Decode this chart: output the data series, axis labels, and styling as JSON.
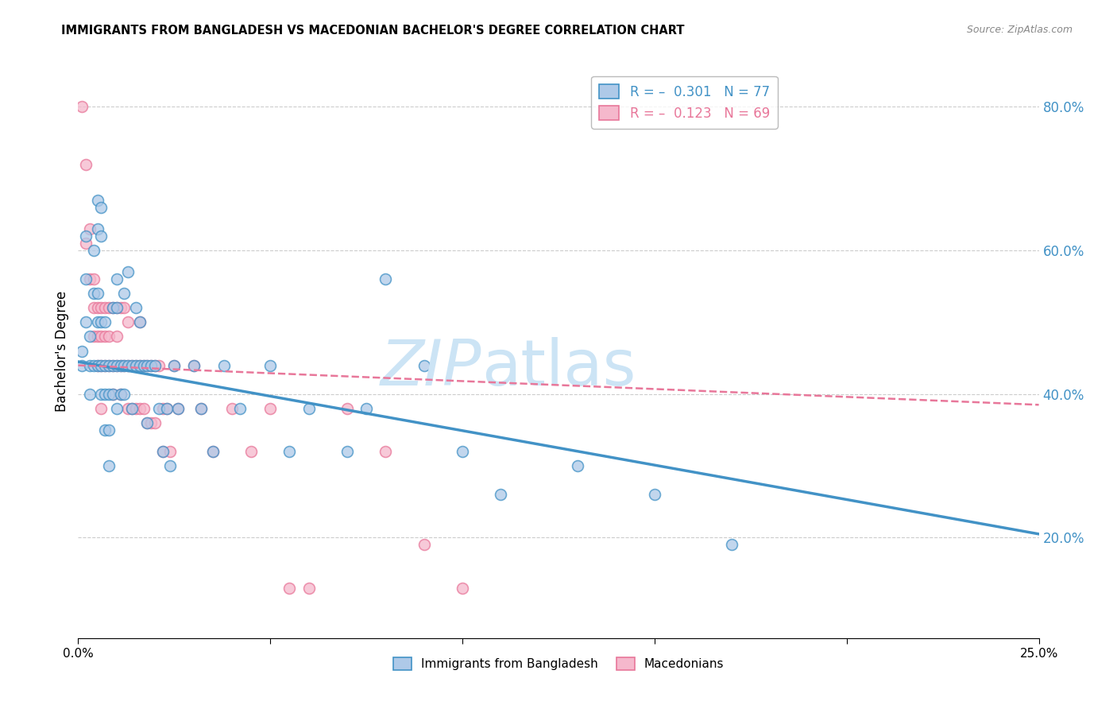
{
  "title": "IMMIGRANTS FROM BANGLADESH VS MACEDONIAN BACHELOR'S DEGREE CORRELATION CHART",
  "source_text": "Source: ZipAtlas.com",
  "ylabel": "Bachelor's Degree",
  "legend_entries": [
    {
      "label_prefix": "R = ",
      "r_val": "-0.301",
      "label_suffix": "   N = ",
      "n_val": "77"
    },
    {
      "label_prefix": "R = ",
      "r_val": "-0.123",
      "label_suffix": "   N = ",
      "n_val": "69"
    }
  ],
  "legend_labels_bottom": [
    "Immigrants from Bangladesh",
    "Macedonians"
  ],
  "x_min": 0.0,
  "x_max": 0.25,
  "y_min": 0.06,
  "y_max": 0.86,
  "y_ticks_right": [
    0.2,
    0.4,
    0.6,
    0.8
  ],
  "blue_scatter": [
    [
      0.001,
      0.44
    ],
    [
      0.001,
      0.46
    ],
    [
      0.002,
      0.5
    ],
    [
      0.002,
      0.56
    ],
    [
      0.002,
      0.62
    ],
    [
      0.003,
      0.48
    ],
    [
      0.003,
      0.44
    ],
    [
      0.003,
      0.4
    ],
    [
      0.004,
      0.6
    ],
    [
      0.004,
      0.54
    ],
    [
      0.004,
      0.44
    ],
    [
      0.005,
      0.67
    ],
    [
      0.005,
      0.63
    ],
    [
      0.005,
      0.54
    ],
    [
      0.005,
      0.5
    ],
    [
      0.005,
      0.44
    ],
    [
      0.006,
      0.66
    ],
    [
      0.006,
      0.62
    ],
    [
      0.006,
      0.5
    ],
    [
      0.006,
      0.44
    ],
    [
      0.006,
      0.4
    ],
    [
      0.007,
      0.5
    ],
    [
      0.007,
      0.44
    ],
    [
      0.007,
      0.4
    ],
    [
      0.007,
      0.35
    ],
    [
      0.008,
      0.44
    ],
    [
      0.008,
      0.4
    ],
    [
      0.008,
      0.35
    ],
    [
      0.008,
      0.3
    ],
    [
      0.009,
      0.52
    ],
    [
      0.009,
      0.44
    ],
    [
      0.009,
      0.4
    ],
    [
      0.01,
      0.56
    ],
    [
      0.01,
      0.52
    ],
    [
      0.01,
      0.44
    ],
    [
      0.01,
      0.38
    ],
    [
      0.011,
      0.44
    ],
    [
      0.011,
      0.4
    ],
    [
      0.012,
      0.54
    ],
    [
      0.012,
      0.44
    ],
    [
      0.012,
      0.4
    ],
    [
      0.013,
      0.57
    ],
    [
      0.013,
      0.44
    ],
    [
      0.014,
      0.44
    ],
    [
      0.014,
      0.38
    ],
    [
      0.015,
      0.52
    ],
    [
      0.015,
      0.44
    ],
    [
      0.016,
      0.5
    ],
    [
      0.016,
      0.44
    ],
    [
      0.017,
      0.44
    ],
    [
      0.018,
      0.44
    ],
    [
      0.018,
      0.36
    ],
    [
      0.019,
      0.44
    ],
    [
      0.02,
      0.44
    ],
    [
      0.021,
      0.38
    ],
    [
      0.022,
      0.32
    ],
    [
      0.023,
      0.38
    ],
    [
      0.024,
      0.3
    ],
    [
      0.025,
      0.44
    ],
    [
      0.026,
      0.38
    ],
    [
      0.03,
      0.44
    ],
    [
      0.032,
      0.38
    ],
    [
      0.035,
      0.32
    ],
    [
      0.038,
      0.44
    ],
    [
      0.042,
      0.38
    ],
    [
      0.05,
      0.44
    ],
    [
      0.055,
      0.32
    ],
    [
      0.06,
      0.38
    ],
    [
      0.07,
      0.32
    ],
    [
      0.075,
      0.38
    ],
    [
      0.08,
      0.56
    ],
    [
      0.09,
      0.44
    ],
    [
      0.1,
      0.32
    ],
    [
      0.11,
      0.26
    ],
    [
      0.13,
      0.3
    ],
    [
      0.15,
      0.26
    ],
    [
      0.17,
      0.19
    ]
  ],
  "pink_scatter": [
    [
      0.001,
      0.8
    ],
    [
      0.002,
      0.72
    ],
    [
      0.002,
      0.61
    ],
    [
      0.003,
      0.63
    ],
    [
      0.003,
      0.56
    ],
    [
      0.004,
      0.56
    ],
    [
      0.004,
      0.52
    ],
    [
      0.004,
      0.48
    ],
    [
      0.005,
      0.52
    ],
    [
      0.005,
      0.48
    ],
    [
      0.005,
      0.44
    ],
    [
      0.006,
      0.52
    ],
    [
      0.006,
      0.48
    ],
    [
      0.006,
      0.44
    ],
    [
      0.006,
      0.38
    ],
    [
      0.007,
      0.52
    ],
    [
      0.007,
      0.48
    ],
    [
      0.007,
      0.44
    ],
    [
      0.008,
      0.52
    ],
    [
      0.008,
      0.48
    ],
    [
      0.008,
      0.44
    ],
    [
      0.009,
      0.52
    ],
    [
      0.009,
      0.44
    ],
    [
      0.009,
      0.4
    ],
    [
      0.01,
      0.52
    ],
    [
      0.01,
      0.48
    ],
    [
      0.01,
      0.44
    ],
    [
      0.011,
      0.52
    ],
    [
      0.011,
      0.44
    ],
    [
      0.011,
      0.4
    ],
    [
      0.012,
      0.52
    ],
    [
      0.012,
      0.44
    ],
    [
      0.013,
      0.5
    ],
    [
      0.013,
      0.44
    ],
    [
      0.013,
      0.38
    ],
    [
      0.014,
      0.44
    ],
    [
      0.014,
      0.38
    ],
    [
      0.015,
      0.44
    ],
    [
      0.015,
      0.38
    ],
    [
      0.016,
      0.5
    ],
    [
      0.016,
      0.44
    ],
    [
      0.016,
      0.38
    ],
    [
      0.017,
      0.44
    ],
    [
      0.017,
      0.38
    ],
    [
      0.018,
      0.44
    ],
    [
      0.018,
      0.36
    ],
    [
      0.019,
      0.44
    ],
    [
      0.019,
      0.36
    ],
    [
      0.02,
      0.44
    ],
    [
      0.02,
      0.36
    ],
    [
      0.021,
      0.44
    ],
    [
      0.022,
      0.38
    ],
    [
      0.022,
      0.32
    ],
    [
      0.023,
      0.38
    ],
    [
      0.024,
      0.32
    ],
    [
      0.025,
      0.44
    ],
    [
      0.026,
      0.38
    ],
    [
      0.03,
      0.44
    ],
    [
      0.032,
      0.38
    ],
    [
      0.035,
      0.32
    ],
    [
      0.04,
      0.38
    ],
    [
      0.045,
      0.32
    ],
    [
      0.05,
      0.38
    ],
    [
      0.055,
      0.13
    ],
    [
      0.06,
      0.13
    ],
    [
      0.07,
      0.38
    ],
    [
      0.08,
      0.32
    ],
    [
      0.09,
      0.19
    ],
    [
      0.1,
      0.13
    ]
  ],
  "blue_line_x": [
    0.0,
    0.25
  ],
  "blue_line_y": [
    0.445,
    0.205
  ],
  "pink_line_x": [
    0.0,
    0.25
  ],
  "pink_line_y": [
    0.44,
    0.385
  ],
  "blue_color": "#4292c6",
  "pink_color": "#e8779a",
  "blue_fill": "#aec9e8",
  "pink_fill": "#f5b8cc",
  "grid_color": "#cccccc",
  "right_axis_color": "#4292c6",
  "marker_size": 100
}
